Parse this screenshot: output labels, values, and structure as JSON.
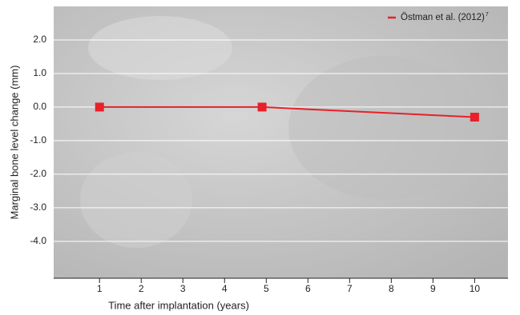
{
  "chart_data": {
    "type": "line",
    "x_label": "Time after implantation (years)",
    "y_label": "Marginal bone level change (mm)",
    "x": [
      1,
      4.9,
      10
    ],
    "series": [
      {
        "name": "Östman et al. (2012)",
        "name_superscript": "7",
        "color": "#e8202a",
        "values": [
          0.0,
          0.0,
          -0.3
        ]
      }
    ],
    "xlim": [
      -0.1,
      10.8
    ],
    "xticks": [
      1,
      2,
      3,
      4,
      5,
      6,
      7,
      8,
      9,
      10
    ],
    "ylim": [
      -5.1,
      3.0
    ],
    "yticks": [
      {
        "value": 2,
        "label": "2.0"
      },
      {
        "value": 1,
        "label": "1.0"
      },
      {
        "value": 0,
        "label": "0.0"
      },
      {
        "value": -1,
        "label": "-1.0"
      },
      {
        "value": -2,
        "label": "-2.0"
      },
      {
        "value": -3,
        "label": "-3.0"
      },
      {
        "value": -4,
        "label": "-4.0"
      }
    ],
    "grid": true,
    "legend_position": "top-right"
  }
}
